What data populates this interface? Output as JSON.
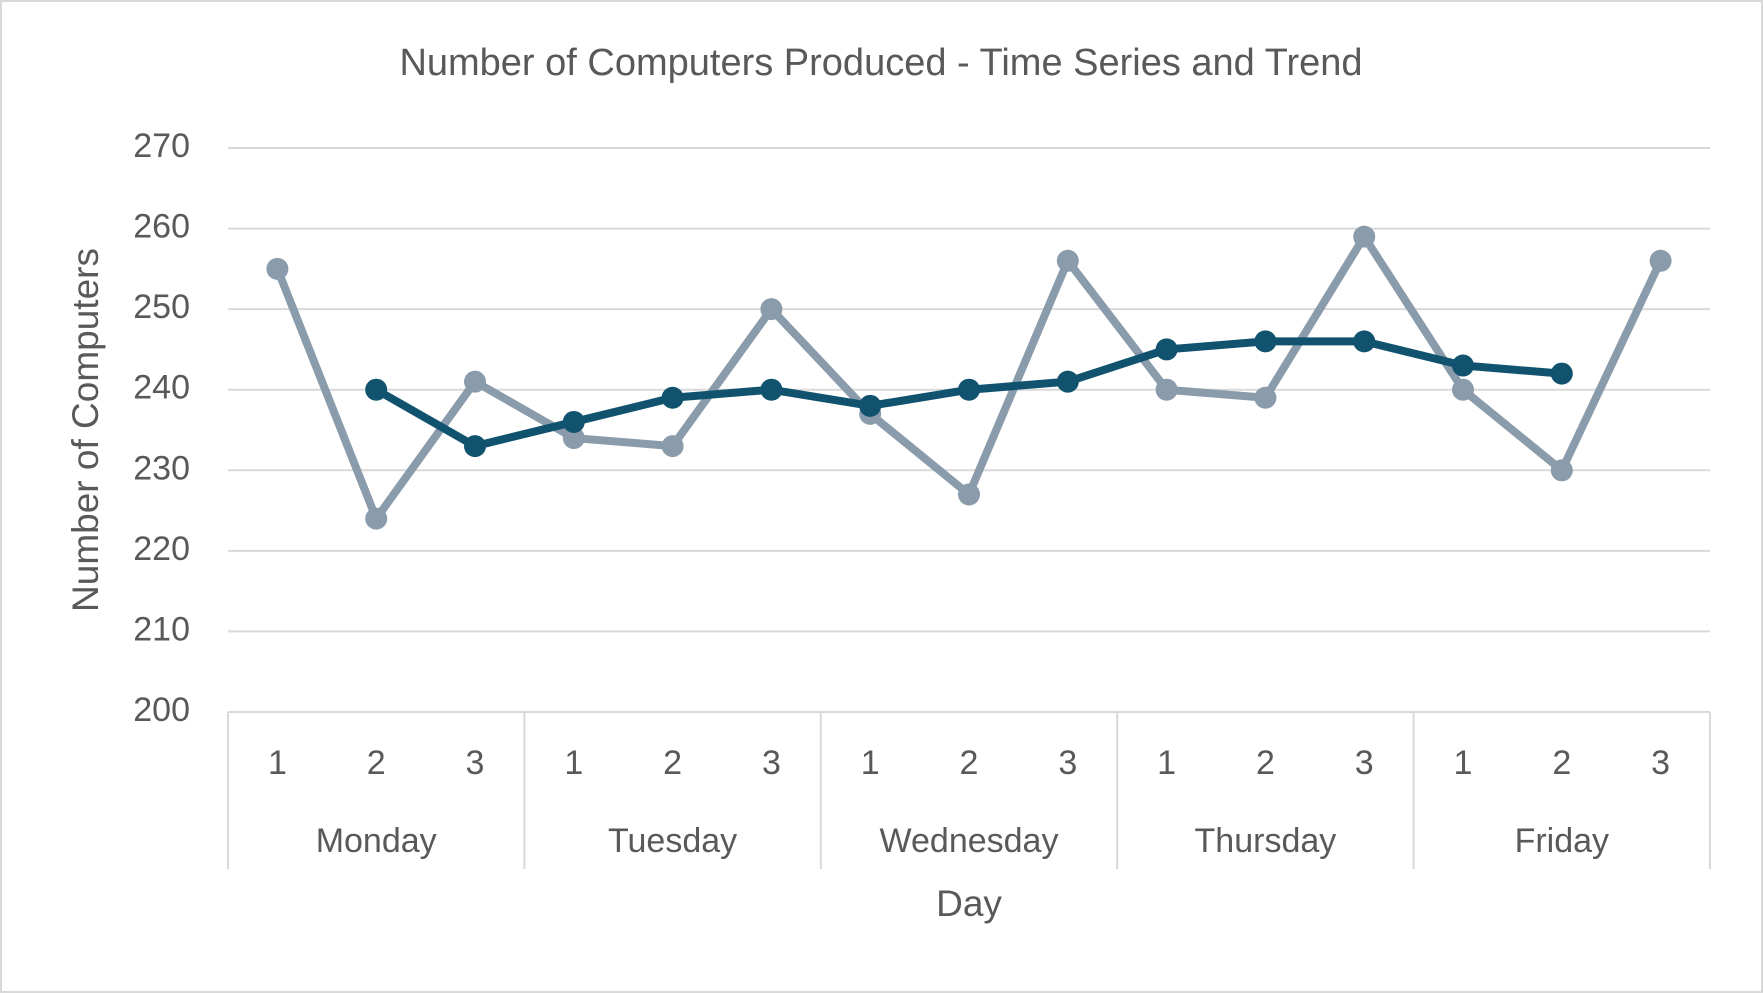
{
  "chart_data": {
    "type": "line",
    "title": "Number of Computers Produced - Time Series and Trend",
    "x_label": "Day",
    "y_label": "Number of Computers",
    "groups": [
      {
        "label": "Monday",
        "categories": [
          "1",
          "2",
          "3"
        ]
      },
      {
        "label": "Tuesday",
        "categories": [
          "1",
          "2",
          "3"
        ]
      },
      {
        "label": "Wednesday",
        "categories": [
          "1",
          "2",
          "3"
        ]
      },
      {
        "label": "Thursday",
        "categories": [
          "1",
          "2",
          "3"
        ]
      },
      {
        "label": "Friday",
        "categories": [
          "1",
          "2",
          "3"
        ]
      }
    ],
    "series": [
      {
        "color": "#8a9bab",
        "values": [
          255,
          224,
          241,
          234,
          233,
          250,
          237,
          227,
          256,
          240,
          239,
          259,
          240,
          230,
          256
        ]
      },
      {
        "color": "#11536f",
        "values": [
          null,
          240,
          233,
          236,
          239,
          240,
          238,
          240,
          241,
          245,
          246,
          246,
          243,
          242,
          null
        ]
      }
    ],
    "ylim": [
      200,
      270
    ],
    "yticks": [
      200,
      210,
      220,
      230,
      240,
      250,
      260,
      270
    ],
    "grid": true
  }
}
